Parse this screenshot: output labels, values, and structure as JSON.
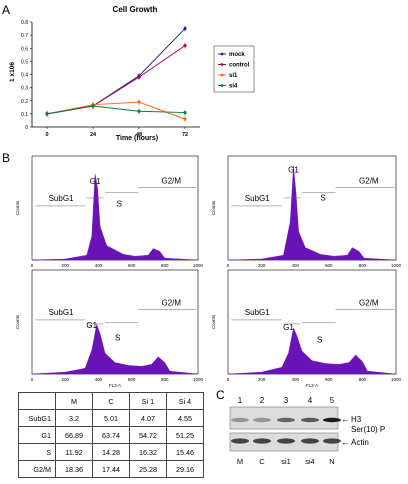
{
  "panels": {
    "a": "A",
    "b": "B",
    "c": "C"
  },
  "colors": {
    "mock": "#1f2a8a",
    "control": "#b0005a",
    "si1": "#ff6a1a",
    "si4": "#0b7a3a",
    "histo": "#6a14b8"
  },
  "chart_data": {
    "type": "line",
    "title": "Cell Growth",
    "xlabel": "Time (hours)",
    "ylabel": "1 x106",
    "x": [
      0,
      24,
      48,
      72
    ],
    "xticks": [
      "0",
      "24",
      "48",
      "72"
    ],
    "yticks": [
      "0",
      "0.1",
      "0.2",
      "0.3",
      "0.4",
      "0.5",
      "0.6",
      "0.7",
      "0.8"
    ],
    "ylim": [
      0,
      0.8
    ],
    "series": [
      {
        "name": "mock",
        "values": [
          0.1,
          0.16,
          0.39,
          0.75
        ],
        "color": "#1f2a8a"
      },
      {
        "name": "control",
        "values": [
          0.1,
          0.16,
          0.38,
          0.62
        ],
        "color": "#b0005a"
      },
      {
        "name": "si1",
        "values": [
          0.1,
          0.17,
          0.19,
          0.06
        ],
        "color": "#ff6a1a"
      },
      {
        "name": "si4",
        "values": [
          0.1,
          0.16,
          0.12,
          0.11
        ],
        "color": "#0b7a3a"
      }
    ],
    "legend": "right"
  },
  "histograms": {
    "ylabel": "Counts",
    "xlabel": "FL2-A",
    "xticks": [
      "0",
      "200",
      "400",
      "600",
      "800",
      "1000"
    ],
    "labels": {
      "subg1": "SubG1",
      "g1": "G1",
      "s": "S",
      "g2m": "G2/M"
    }
  },
  "table": {
    "headers": [
      "",
      "M",
      "C",
      "Si 1",
      "Si 4"
    ],
    "rows": [
      [
        "SubG1",
        "3.2",
        "5.01",
        "4.07",
        "4.55"
      ],
      [
        "G1",
        "66.89",
        "63.74",
        "54.72",
        "51.25"
      ],
      [
        "S",
        "11.92",
        "14.28",
        "16.32",
        "15.46"
      ],
      [
        "G2/M",
        "18.36",
        "17.44",
        "25.28",
        "29.16"
      ]
    ]
  },
  "blot": {
    "lanes": [
      "1",
      "2",
      "3",
      "4",
      "5"
    ],
    "lane_labels": [
      "M",
      "C",
      "si1",
      "si4",
      "N"
    ],
    "h3_label_1": "H3",
    "h3_label_2": "Ser(10) P",
    "actin_label": "Actin"
  }
}
